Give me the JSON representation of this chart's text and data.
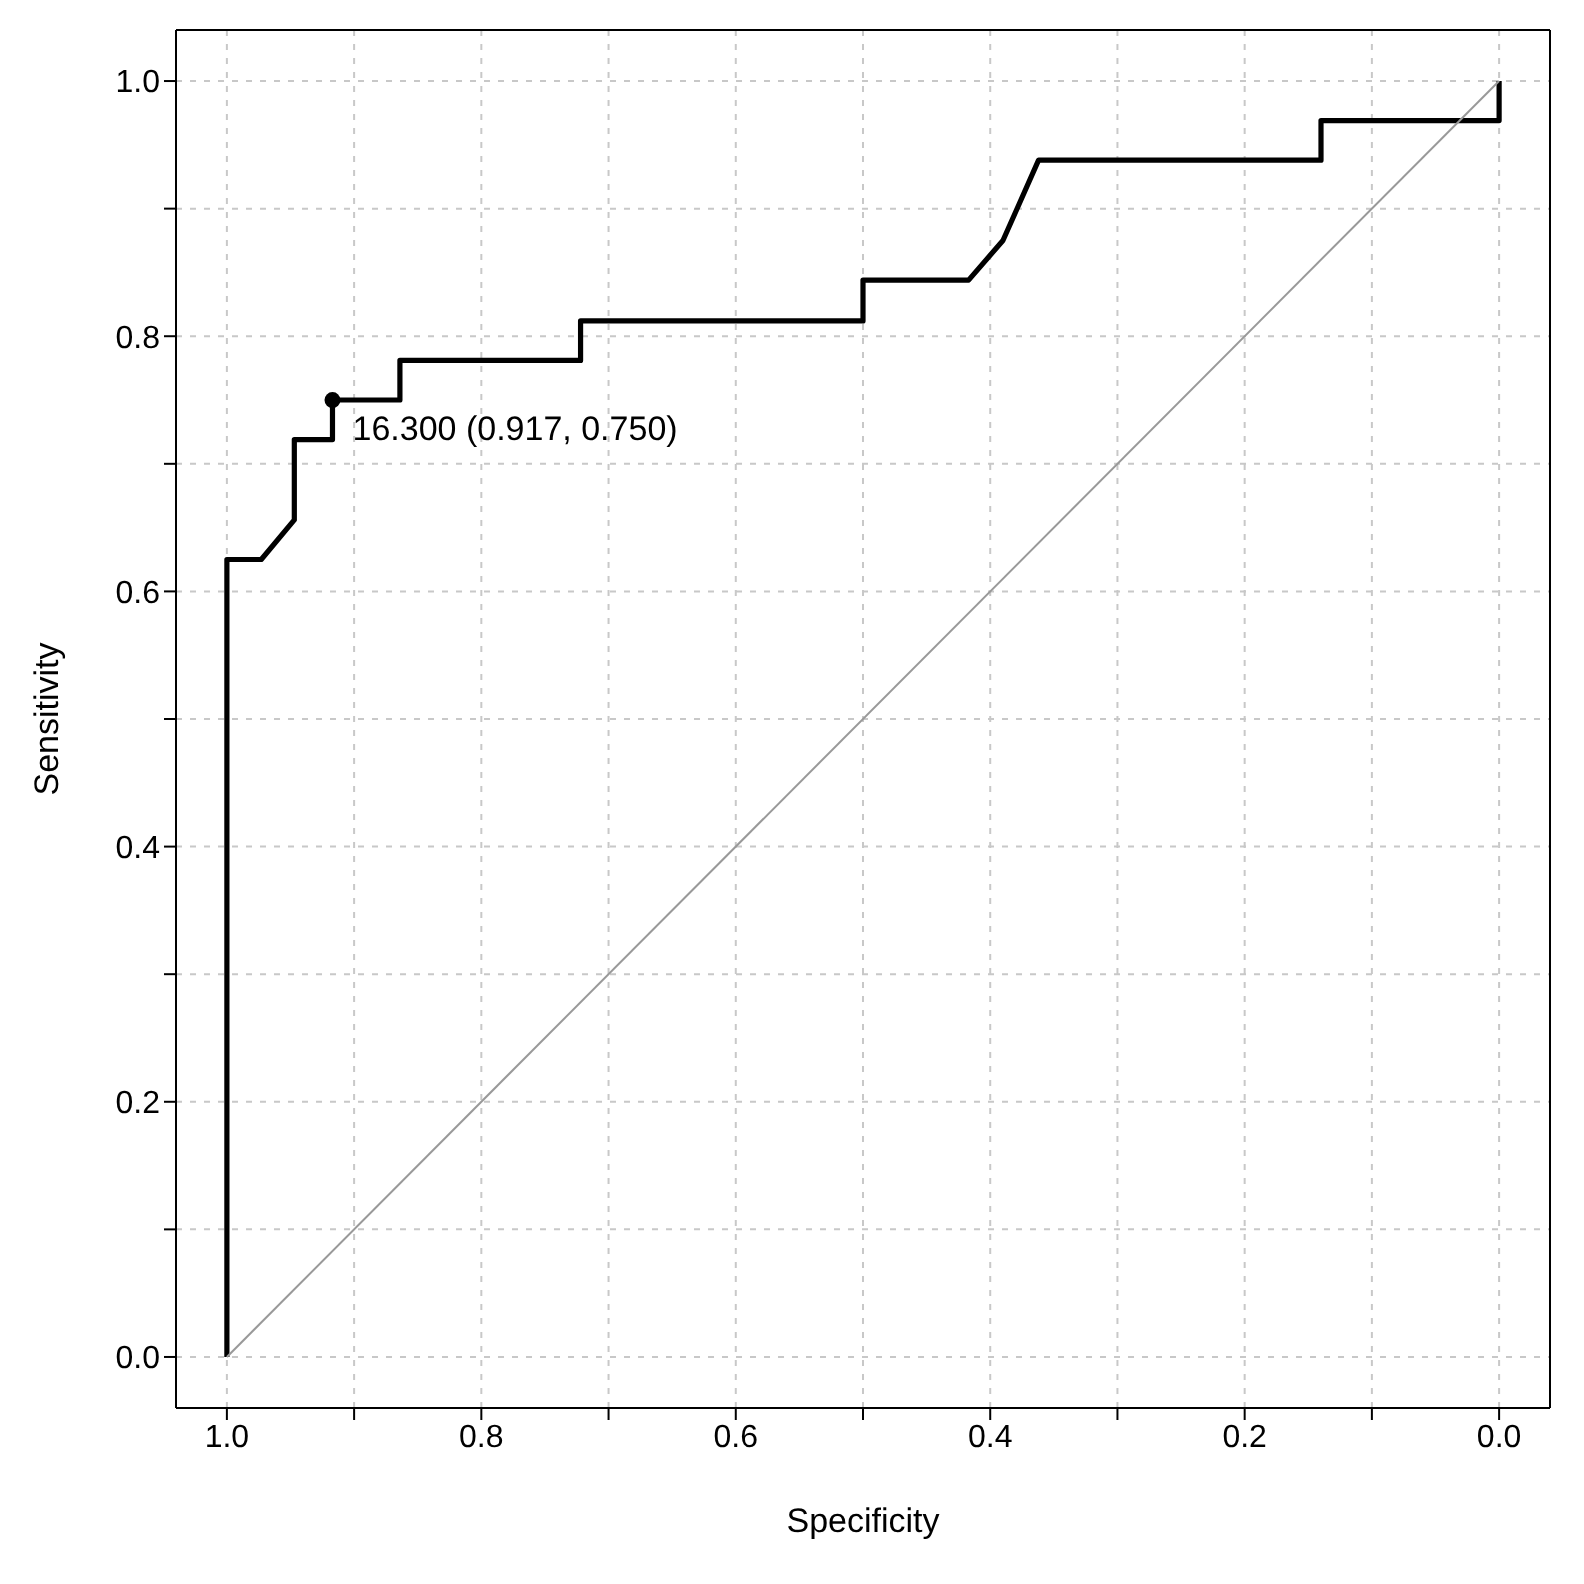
{
  "chart_data": {
    "type": "line",
    "xlabel": "Specificity",
    "ylabel": "Sensitivity",
    "xlim": [
      1.04,
      -0.04
    ],
    "ylim": [
      -0.04,
      1.04
    ],
    "xticks": [
      {
        "value": 0,
        "label": "0.0"
      },
      {
        "value": 0.1,
        "label": null
      },
      0.2,
      {
        "value": 0.3,
        "label": null
      },
      0.4,
      {
        "value": 0.5,
        "label": null
      },
      0.6,
      {
        "value": 0.7,
        "label": null
      },
      0.8,
      {
        "value": 0.9,
        "label": null
      },
      {
        "value": 1,
        "label": "1.0"
      }
    ],
    "yticks": [
      {
        "value": 0,
        "label": "0.0"
      },
      {
        "value": 0.1,
        "label": null
      },
      0.2,
      {
        "value": 0.3,
        "label": null
      },
      0.4,
      {
        "value": 0.5,
        "label": null
      },
      0.6,
      {
        "value": 0.7,
        "label": null
      },
      0.8,
      {
        "value": 0.9,
        "label": null
      },
      {
        "value": 1,
        "label": "1.0"
      }
    ],
    "grid": true,
    "line_style": "solid",
    "marker": "none",
    "series": [
      {
        "color": "#000000",
        "x": [
          1.0,
          1.0,
          0.973,
          0.947,
          0.947,
          0.917,
          0.917,
          0.864,
          0.864,
          0.722,
          0.722,
          0.5,
          0.5,
          0.417,
          0.39,
          0.362,
          0.14,
          0.14,
          0.0,
          0.0
        ],
        "values": [
          0.0,
          0.625,
          0.625,
          0.656,
          0.719,
          0.719,
          0.75,
          0.75,
          0.781,
          0.781,
          0.812,
          0.812,
          0.844,
          0.844,
          0.875,
          0.938,
          0.938,
          0.969,
          0.969,
          1.0
        ]
      },
      {
        "color": "#999999",
        "x": [
          1.0,
          0.0
        ],
        "values": [
          0.0,
          1.0
        ]
      },
      {
        "type": "scatter",
        "color": "#000000",
        "marker": "circle",
        "x": [
          0.917
        ],
        "values": [
          0.75
        ]
      }
    ],
    "annotations": [
      {
        "text": "16.300 (0.917, 0.750)",
        "x": 0.917,
        "y": 0.75
      }
    ]
  }
}
